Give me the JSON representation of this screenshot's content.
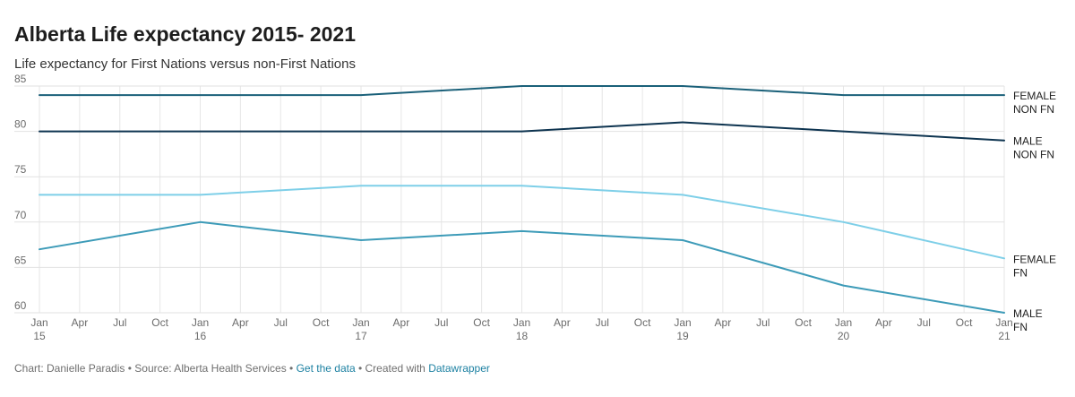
{
  "header": {
    "title": "Alberta Life expectancy 2015- 2021",
    "subtitle": "Life expectancy for First Nations versus non-First Nations"
  },
  "footer": {
    "chart_by": "Chart: Danielle Paradis",
    "sep1": " • ",
    "source": "Source: Alberta Health Services",
    "sep2": " • ",
    "get_data": "Get the data",
    "sep3": " • Created with ",
    "datawrapper": "Datawrapper"
  },
  "chart_data": {
    "type": "line",
    "title": "Alberta Life expectancy 2015- 2021",
    "xlabel": "",
    "ylabel": "",
    "x": [
      2015,
      2016,
      2017,
      2018,
      2019,
      2020,
      2021
    ],
    "xlim": [
      2015,
      2021
    ],
    "ylim": [
      60,
      85
    ],
    "yticks": [
      60,
      65,
      70,
      75,
      80,
      85
    ],
    "xticks": [
      {
        "v": 2015.0,
        "label": [
          "Jan",
          "15"
        ]
      },
      {
        "v": 2015.25,
        "label": [
          "Apr"
        ]
      },
      {
        "v": 2015.5,
        "label": [
          "Jul"
        ]
      },
      {
        "v": 2015.75,
        "label": [
          "Oct"
        ]
      },
      {
        "v": 2016.0,
        "label": [
          "Jan",
          "16"
        ]
      },
      {
        "v": 2016.25,
        "label": [
          "Apr"
        ]
      },
      {
        "v": 2016.5,
        "label": [
          "Jul"
        ]
      },
      {
        "v": 2016.75,
        "label": [
          "Oct"
        ]
      },
      {
        "v": 2017.0,
        "label": [
          "Jan",
          "17"
        ]
      },
      {
        "v": 2017.25,
        "label": [
          "Apr"
        ]
      },
      {
        "v": 2017.5,
        "label": [
          "Jul"
        ]
      },
      {
        "v": 2017.75,
        "label": [
          "Oct"
        ]
      },
      {
        "v": 2018.0,
        "label": [
          "Jan",
          "18"
        ]
      },
      {
        "v": 2018.25,
        "label": [
          "Apr"
        ]
      },
      {
        "v": 2018.5,
        "label": [
          "Jul"
        ]
      },
      {
        "v": 2018.75,
        "label": [
          "Oct"
        ]
      },
      {
        "v": 2019.0,
        "label": [
          "Jan",
          "19"
        ]
      },
      {
        "v": 2019.25,
        "label": [
          "Apr"
        ]
      },
      {
        "v": 2019.5,
        "label": [
          "Jul"
        ]
      },
      {
        "v": 2019.75,
        "label": [
          "Oct"
        ]
      },
      {
        "v": 2020.0,
        "label": [
          "Jan",
          "20"
        ]
      },
      {
        "v": 2020.25,
        "label": [
          "Apr"
        ]
      },
      {
        "v": 2020.5,
        "label": [
          "Jul"
        ]
      },
      {
        "v": 2020.75,
        "label": [
          "Oct"
        ]
      },
      {
        "v": 2021.0,
        "label": [
          "Jan",
          "21"
        ]
      }
    ],
    "grid": true,
    "series": [
      {
        "name": "FEMALE NON FN",
        "label_lines": [
          "FEMALE",
          "NON FN"
        ],
        "color": "#1a6079",
        "values": [
          84,
          84,
          84,
          85,
          85,
          84,
          84
        ]
      },
      {
        "name": "MALE NON FN",
        "label_lines": [
          "MALE",
          "NON FN"
        ],
        "color": "#0e3450",
        "values": [
          80,
          80,
          80,
          80,
          81,
          80,
          79
        ]
      },
      {
        "name": "FEMALE FN",
        "label_lines": [
          "FEMALE",
          "FN"
        ],
        "color": "#7ecfe8",
        "values": [
          73,
          73,
          74,
          74,
          73,
          70,
          66
        ]
      },
      {
        "name": "MALE FN",
        "label_lines": [
          "MALE",
          "FN"
        ],
        "color": "#3d9bb8",
        "values": [
          67,
          70,
          68,
          69,
          68,
          63,
          60
        ]
      }
    ]
  }
}
